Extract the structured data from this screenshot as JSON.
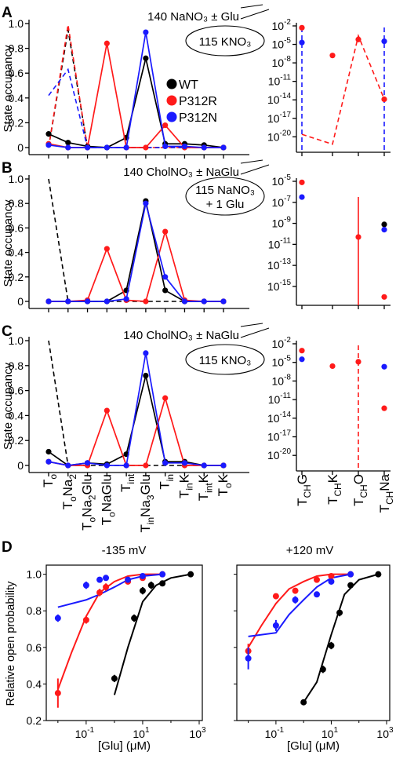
{
  "colors": {
    "WT": "#000000",
    "P312R": "#ff1a1a",
    "P312N": "#1a1aff"
  },
  "legend": [
    "WT",
    "P312R",
    "P312N"
  ],
  "states": [
    "T_o",
    "T_oNa_2",
    "T_oNa_2Glu",
    "T_oNaGlu",
    "T_int",
    "T_inNa_3Glu",
    "T_in",
    "T_inK",
    "T_intK",
    "T_oK"
  ],
  "ch_states": [
    "T_CHG",
    "T_CHK",
    "T_CHO",
    "T_CHNa"
  ],
  "chart_data": [
    {
      "panel": "A",
      "type": "line",
      "subtype": "state-occupancy",
      "condition": "140 NaNO₃ ± Glu",
      "bubble": [
        "115 KNO₃"
      ],
      "ylabel": "State occupancy",
      "ylim": [
        0,
        1
      ],
      "yticks": [
        "0",
        "0.2",
        "0.4",
        "0.6",
        "0.8",
        "1.0"
      ],
      "series": [
        {
          "name": "WT",
          "values": [
            0.11,
            0.04,
            0.01,
            0.0,
            0.08,
            0.72,
            0.03,
            0.03,
            0.02,
            0.0
          ]
        },
        {
          "name": "P312R",
          "values": [
            0.03,
            0.0,
            0.0,
            0.84,
            0.0,
            0.0,
            0.18,
            0.0,
            0.0,
            0.0
          ]
        },
        {
          "name": "P312N",
          "values": [
            0.02,
            0.0,
            0.0,
            0.0,
            0.0,
            0.93,
            0.01,
            0.01,
            0.0,
            0.0
          ]
        }
      ],
      "dashed": [
        {
          "color": "WT",
          "values": [
            0.0,
            0.95,
            0.0,
            0.0,
            0.0,
            0.0,
            0.0,
            0.0,
            0.0,
            0.0
          ]
        },
        {
          "color": "P312R",
          "values": [
            0.0,
            0.99,
            0.0,
            0.0,
            0.0,
            0.0,
            0.0,
            0.0,
            0.0,
            0.0
          ]
        },
        {
          "color": "P312N",
          "values": [
            0.42,
            0.63,
            0.0,
            0.0,
            0.0,
            0.0,
            0.0,
            0.0,
            0.0,
            0.0
          ]
        }
      ],
      "right": {
        "yscale": "log",
        "logmin": -22,
        "logmax": -2,
        "ticks": [
          -2,
          -5,
          -8,
          -11,
          -14,
          -17,
          -20
        ],
        "points": [
          {
            "series": "P312R",
            "state": 0,
            "log": -2.3
          },
          {
            "series": "P312N",
            "state": 0,
            "log": -4.7
          },
          {
            "series": "P312R",
            "state": 1,
            "log": -6.8
          },
          {
            "series": "P312R",
            "state": 2,
            "log": -4.2
          },
          {
            "series": "P312N",
            "state": 3,
            "log": -4.5
          },
          {
            "series": "P312R",
            "state": 3,
            "log": -13.9
          }
        ],
        "dashed": [
          {
            "color": "P312R",
            "points": [
              [
                0,
                -19.6
              ],
              [
                1,
                -21.2
              ],
              [
                2,
                -3.6
              ],
              [
                3,
                -13.9
              ]
            ]
          },
          {
            "color": "P312N",
            "points": [
              [
                0,
                -22
              ],
              [
                0,
                -22.5
              ]
            ],
            "vline": 0
          },
          {
            "color": "P312N",
            "vline": 3
          }
        ]
      }
    },
    {
      "panel": "B",
      "type": "line",
      "subtype": "state-occupancy",
      "condition": "140 CholNO₃ ± NaGlu",
      "bubble": [
        "115 NaNO₃",
        "+ 1 Glu"
      ],
      "ylabel": "State occupancy",
      "ylim": [
        0,
        1
      ],
      "yticks": [
        "0",
        "0.2",
        "0.4",
        "0.6",
        "0.8",
        "1.0"
      ],
      "series": [
        {
          "name": "WT",
          "values": [
            0.0,
            0.0,
            0.0,
            0.0,
            0.09,
            0.82,
            0.09,
            0.0,
            0.0,
            0.0
          ]
        },
        {
          "name": "P312R",
          "values": [
            0.0,
            0.0,
            0.01,
            0.43,
            0.01,
            0.0,
            0.57,
            0.01,
            0.0,
            0.0
          ]
        },
        {
          "name": "P312N",
          "values": [
            0.0,
            0.0,
            0.0,
            0.0,
            0.02,
            0.8,
            0.2,
            0.0,
            0.0,
            0.0
          ]
        }
      ],
      "dashed": [
        {
          "color": "WT",
          "values": [
            1.0,
            0.0,
            0.0,
            0.0,
            0.0,
            0.0,
            0.0,
            0.0,
            0.0,
            0.0
          ]
        }
      ],
      "right": {
        "yscale": "log",
        "logmin": -16.5,
        "logmax": -5,
        "ticks": [
          -5,
          -7,
          -9,
          -11,
          -13,
          -15
        ],
        "points": [
          {
            "series": "P312R",
            "state": 0,
            "log": -5.1
          },
          {
            "series": "P312N",
            "state": 0,
            "log": -6.5
          },
          {
            "series": "P312R",
            "state": 2,
            "log": -10.3
          },
          {
            "series": "WT",
            "state": 3,
            "log": -9.1
          },
          {
            "series": "P312N",
            "state": 3,
            "log": -9.6
          },
          {
            "series": "P312R",
            "state": 3,
            "log": -16.0
          }
        ],
        "dashed": [
          {
            "color": "P312R",
            "solid_vline": 2
          }
        ]
      }
    },
    {
      "panel": "C",
      "type": "line",
      "subtype": "state-occupancy",
      "condition": "140 CholNO₃ ± NaGlu",
      "bubble": [
        "115 KNO₃"
      ],
      "ylabel": "State occupancy",
      "ylim": [
        0,
        1
      ],
      "yticks": [
        "0",
        "0.2",
        "0.4",
        "0.6",
        "0.8",
        "1.0"
      ],
      "series": [
        {
          "name": "WT",
          "values": [
            0.11,
            0.0,
            0.02,
            0.01,
            0.09,
            0.72,
            0.03,
            0.03,
            0.0,
            0.0
          ]
        },
        {
          "name": "P312R",
          "values": [
            0.03,
            0.0,
            0.0,
            0.44,
            0.0,
            0.0,
            0.54,
            0.0,
            0.0,
            0.0
          ]
        },
        {
          "name": "P312N",
          "values": [
            0.03,
            0.0,
            0.02,
            0.0,
            0.0,
            0.9,
            0.02,
            0.02,
            0.0,
            0.0
          ]
        }
      ],
      "dashed": [
        {
          "color": "WT",
          "values": [
            1.0,
            0.0,
            0.0,
            0.0,
            0.0,
            0.0,
            0.0,
            0.0,
            0.0,
            0.0
          ]
        }
      ],
      "right": {
        "yscale": "log",
        "logmin": -22,
        "logmax": -2,
        "ticks": [
          -2,
          -5,
          -8,
          -11,
          -14,
          -17,
          -20
        ],
        "points": [
          {
            "series": "P312R",
            "state": 0,
            "log": -3.1
          },
          {
            "series": "P312N",
            "state": 0,
            "log": -4.5
          },
          {
            "series": "P312R",
            "state": 1,
            "log": -5.6
          },
          {
            "series": "P312R",
            "state": 2,
            "log": -4.9
          },
          {
            "series": "P312N",
            "state": 3,
            "log": -5.7
          },
          {
            "series": "P312R",
            "state": 3,
            "log": -12.4
          }
        ],
        "dashed": [
          {
            "color": "P312R",
            "vline": 2
          }
        ]
      }
    },
    {
      "panel": "D",
      "type": "scatter",
      "subtype": "dose-response",
      "title": "-135 mV",
      "xlabel": "[Glu] (μM)",
      "ylabel": "Relative open probability",
      "xscale": "log",
      "xlim": [
        0.005,
        1000
      ],
      "ylim": [
        0.2,
        1.05
      ],
      "xtick_exps": [
        -1,
        1,
        3
      ],
      "yticks": [
        0.2,
        0.4,
        0.6,
        0.8,
        1.0
      ],
      "series": [
        {
          "name": "WT",
          "x": [
            1,
            5,
            10,
            20,
            50,
            500
          ],
          "y": [
            0.43,
            0.76,
            0.91,
            0.94,
            0.95,
            1.0
          ],
          "err": [
            0.02,
            0.02,
            0.02,
            0.02,
            0.01,
            0.0
          ],
          "fit_x": [
            1,
            3,
            10,
            30,
            100,
            500
          ],
          "fit_y": [
            0.34,
            0.6,
            0.85,
            0.94,
            0.98,
            1.0
          ]
        },
        {
          "name": "P312R",
          "x": [
            0.01,
            0.1,
            0.3,
            0.5,
            3,
            10,
            50
          ],
          "y": [
            0.35,
            0.75,
            0.9,
            0.93,
            0.96,
            0.98,
            1.0
          ],
          "err": [
            0.08,
            0.02,
            0.02,
            0.02,
            0.01,
            0.01,
            0.0
          ],
          "fit_x": [
            0.01,
            0.03,
            0.1,
            0.3,
            1,
            3,
            10,
            50
          ],
          "fit_y": [
            0.37,
            0.57,
            0.77,
            0.9,
            0.96,
            0.99,
            1.0,
            1.0
          ]
        },
        {
          "name": "P312N",
          "x": [
            0.01,
            0.1,
            0.3,
            0.5,
            3,
            10,
            50
          ],
          "y": [
            0.76,
            0.94,
            0.97,
            0.98,
            0.97,
            0.99,
            1.0
          ],
          "err": [
            0.02,
            0.02,
            0.01,
            0.01,
            0.01,
            0.01,
            0.0
          ],
          "fit_x": [
            0.01,
            0.1,
            0.3,
            1,
            3,
            10,
            50
          ],
          "fit_y": [
            0.82,
            0.86,
            0.89,
            0.93,
            0.97,
            0.99,
            1.0
          ]
        }
      ]
    },
    {
      "panel": "D2",
      "type": "scatter",
      "subtype": "dose-response",
      "title": "+120 mV",
      "xlabel": "[Glu] (μM)",
      "xscale": "log",
      "xlim": [
        0.005,
        1000
      ],
      "ylim": [
        0.2,
        1.05
      ],
      "xtick_exps": [
        -1,
        1,
        3
      ],
      "series": [
        {
          "name": "WT",
          "x": [
            1,
            5,
            10,
            20,
            50,
            500
          ],
          "y": [
            0.3,
            0.48,
            0.61,
            0.79,
            0.94,
            1.0
          ],
          "err": [
            0.0,
            0.02,
            0.02,
            0.02,
            0.01,
            0.0
          ],
          "fit_x": [
            1,
            3,
            10,
            30,
            100,
            500
          ],
          "fit_y": [
            0.3,
            0.41,
            0.67,
            0.89,
            0.97,
            1.0
          ]
        },
        {
          "name": "P312R",
          "x": [
            0.01,
            0.1,
            0.5,
            3,
            10,
            50
          ],
          "y": [
            0.58,
            0.88,
            0.91,
            0.97,
            0.99,
            1.0
          ],
          "err": [
            0.04,
            0.01,
            0.01,
            0.01,
            0.01,
            0.0
          ],
          "fit_x": [
            0.01,
            0.03,
            0.1,
            0.3,
            1,
            3,
            10,
            50
          ],
          "fit_y": [
            0.6,
            0.72,
            0.84,
            0.92,
            0.96,
            0.99,
            1.0,
            1.0
          ]
        },
        {
          "name": "P312N",
          "x": [
            0.01,
            0.1,
            0.5,
            3,
            10,
            50
          ],
          "y": [
            0.54,
            0.72,
            0.86,
            0.89,
            0.96,
            1.0
          ],
          "err": [
            0.06,
            0.03,
            0.02,
            0.01,
            0.01,
            0.0
          ],
          "fit_x": [
            0.01,
            0.1,
            0.3,
            1,
            3,
            10,
            50
          ],
          "fit_y": [
            0.66,
            0.68,
            0.78,
            0.86,
            0.93,
            0.98,
            1.0
          ]
        }
      ]
    }
  ],
  "panel_labels": [
    "A",
    "B",
    "C",
    "D"
  ]
}
